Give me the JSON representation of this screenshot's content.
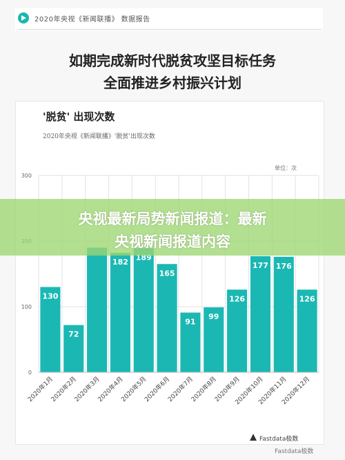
{
  "header": {
    "source_line": "2020年央视《新闻联播》 数据报告"
  },
  "headline": {
    "line1": "如期完成新时代脱贫攻坚目标任务",
    "line2": "全面推进乡村振兴计划"
  },
  "overlay": {
    "line1": "央视最新局势新闻报道：最新",
    "line2": "央视新闻报道内容"
  },
  "branding": {
    "logo_text": "Fastdata极数",
    "watermark_text": "Fastdata极数"
  },
  "colors": {
    "bar": "#1bb8b3",
    "overlay": "#9dd672",
    "axis_text": "#666666",
    "grid": "#e2e2e2"
  },
  "chart_data": {
    "type": "bar",
    "title": "'脱贫' 出现次数",
    "subtitle": "2020年央视《新闻联播》'脱贫'出现次数",
    "unit": "单位：次",
    "categories": [
      "2020年1月",
      "2020年2月",
      "2020年3月",
      "2020年4月",
      "2020年5月",
      "2020年6月",
      "2020年7月",
      "2020年8月",
      "2020年9月",
      "2020年10月",
      "2020年11月",
      "2020年12月"
    ],
    "values": [
      130,
      72,
      190,
      182,
      189,
      165,
      91,
      99,
      126,
      177,
      176,
      126
    ],
    "value_labels": [
      "130",
      "72",
      "",
      "182",
      "189",
      "165",
      "91",
      "99",
      "126",
      "177",
      "176",
      "126"
    ],
    "ylim": [
      0,
      300
    ],
    "yticks": [
      "0",
      "100",
      "200",
      "300"
    ],
    "grid": true,
    "legend": "none"
  }
}
